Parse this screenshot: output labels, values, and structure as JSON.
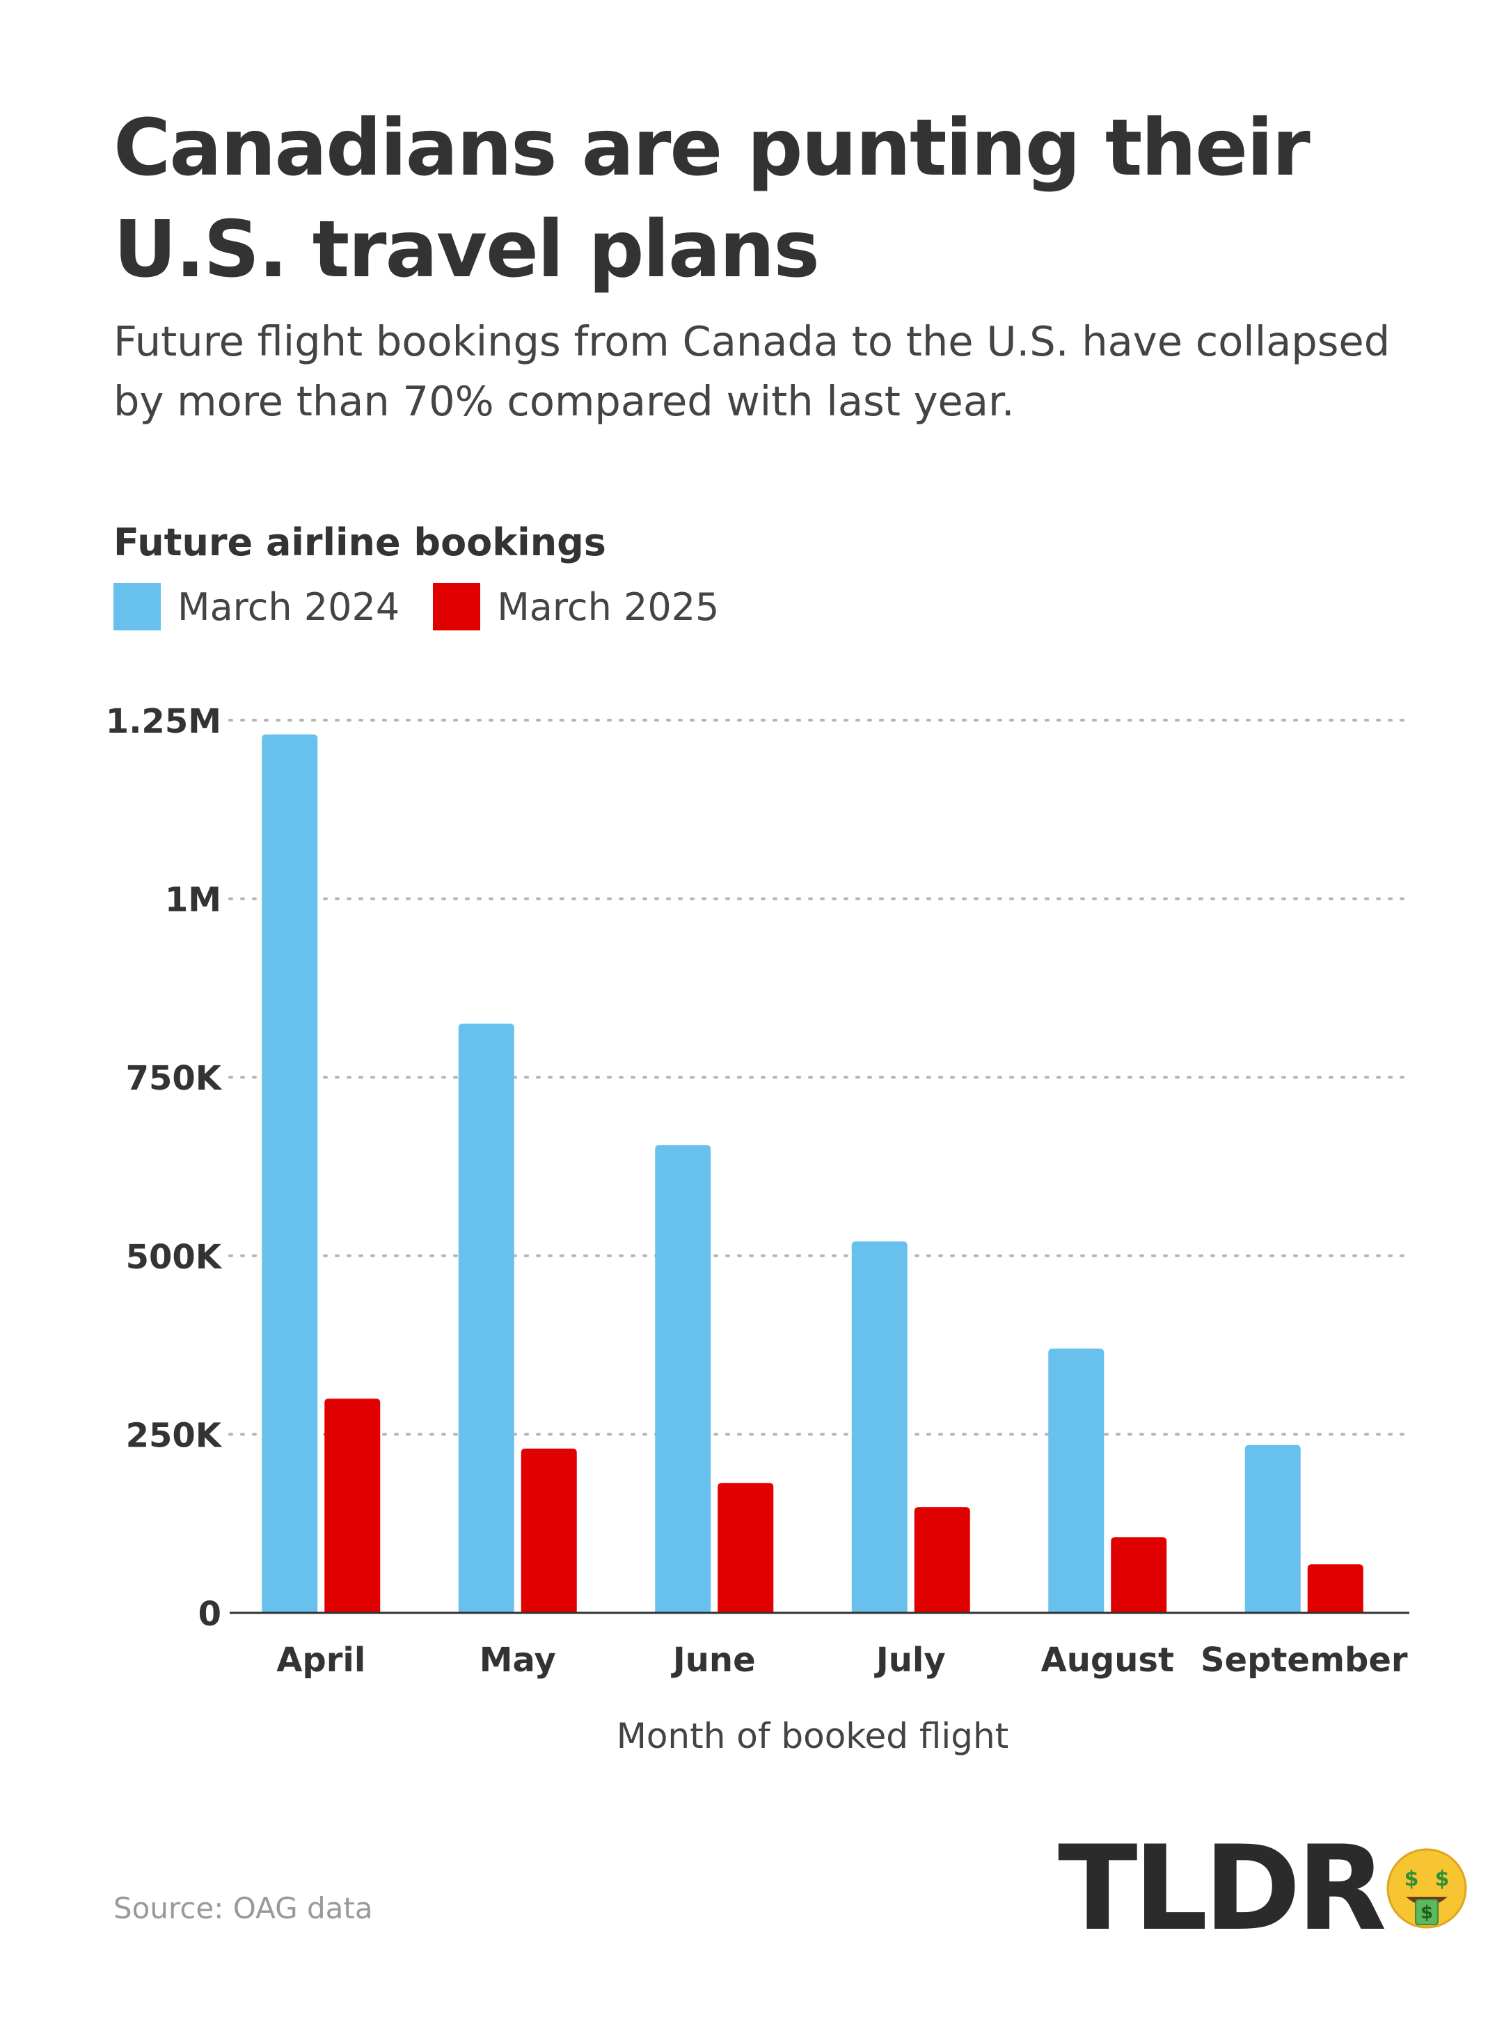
{
  "title": "Canadians are punting their U.S. travel plans",
  "subtitle": "Future flight bookings from Canada to the U.S. have collapsed by more than 70% compared with last year.",
  "chart_heading": "Future airline bookings",
  "source": "Source: OAG data",
  "logo": {
    "text": "TLDR",
    "icon": "money-mouth-face-icon"
  },
  "colors": {
    "series_2024": "#68c1ed",
    "series_2025": "#e00000",
    "text": "#333333",
    "grid": "#b5b5b5"
  },
  "chart_data": {
    "type": "bar",
    "categories": [
      "April",
      "May",
      "June",
      "July",
      "August",
      "September"
    ],
    "series": [
      {
        "name": "March 2024",
        "values": [
          1230000,
          825000,
          655000,
          520000,
          370000,
          235000
        ]
      },
      {
        "name": "March 2025",
        "values": [
          300000,
          230000,
          182000,
          148000,
          106000,
          68000
        ]
      }
    ],
    "xlabel": "Month of booked flight",
    "ylabel": "",
    "ylim": [
      0,
      1250000
    ],
    "yticks": [
      0,
      250000,
      500000,
      750000,
      1000000,
      1250000
    ],
    "ytick_labels": [
      "0",
      "250K",
      "500K",
      "750K",
      "1M",
      "1.25M"
    ],
    "grid": true,
    "legend": "top-left"
  }
}
